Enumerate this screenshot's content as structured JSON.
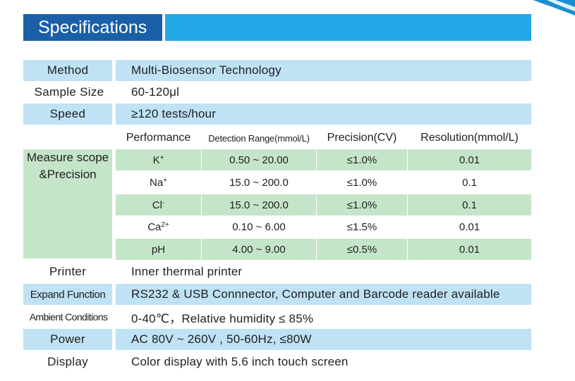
{
  "title": "Specifications",
  "colors": {
    "title_box": "#1a5fa8",
    "title_bar": "#22a8e6",
    "row_blue": "#bfe2f5",
    "row_green": "#c5e5c9"
  },
  "rows_top": [
    {
      "label": "Method",
      "value": "Multi-Biosensor Technology"
    },
    {
      "label": "Sample Size",
      "value": "60-120μl"
    },
    {
      "label": "Speed",
      "value": "≥120 tests/hour"
    }
  ],
  "performance": {
    "label_line1": "Measure scope",
    "label_line2": "&Precision",
    "headers": [
      "Performance",
      "Detection Range(mmol/L)",
      "Precision(CV)",
      "Resolution(mmol/L)"
    ],
    "rows": [
      {
        "item": "K",
        "sup": "+",
        "range": "0.50 ~ 20.00",
        "precision": "≤1.0%",
        "resolution": "0.01"
      },
      {
        "item": "Na",
        "sup": "+",
        "range": "15.0 ~ 200.0",
        "precision": "≤1.0%",
        "resolution": "0.1"
      },
      {
        "item": "Cl",
        "sup": "-",
        "range": "15.0 ~ 200.0",
        "precision": "≤1.0%",
        "resolution": "0.1"
      },
      {
        "item": "Ca",
        "sup": "2+",
        "range": "0.10 ~ 6.00",
        "precision": "≤1.5%",
        "resolution": "0.01"
      },
      {
        "item": "pH",
        "sup": "",
        "range": "4.00 ~ 9.00",
        "precision": "≤0.5%",
        "resolution": "0.01"
      }
    ]
  },
  "rows_bottom": [
    {
      "label": "Printer",
      "value": "Inner thermal printer"
    },
    {
      "label": "Expand Function",
      "value": "RS232 & USB Connnector, Computer and Barcode reader available"
    },
    {
      "label": "Ambient Conditions",
      "value": "0-40℃，Relative humidity ≤ 85%"
    },
    {
      "label": "Power",
      "value": "AC 80V ~ 260V , 50-60Hz, ≤80W"
    },
    {
      "label": "Display",
      "value": "Color display with 5.6 inch touch screen"
    }
  ]
}
